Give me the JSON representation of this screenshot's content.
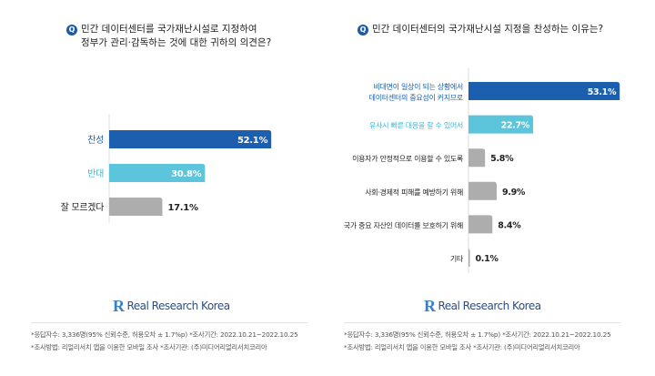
{
  "colors": {
    "primary": "#1b5fae",
    "secondary": "#5cc5dc",
    "neutral": "#adadad",
    "axis": "#dddddd"
  },
  "logo": {
    "text": "Real Research Korea"
  },
  "footnotes": [
    "*응답자수: 3,336명(95% 신뢰수준, 허용오차 ± 1.7%p)  *조사기간: 2022.10.21~2022.10.25",
    "*조사방법: 리얼리서치 앱을 이용한 모바일 조사  *조사기관: (주)미디어리얼리서치코리아"
  ],
  "chart_data": [
    {
      "type": "bar",
      "orientation": "horizontal",
      "title_icon": "Q",
      "title_lines": [
        "민간 데이터센터를 국가재난시설로 지정하여",
        "정부가 관리·감독하는 것에 대한 귀하의 의견은?"
      ],
      "categories": [
        "찬성",
        "반대",
        "잘 모르겠다"
      ],
      "values": [
        52.1,
        30.8,
        17.1
      ],
      "value_labels": [
        "52.1%",
        "30.8%",
        "17.1%"
      ],
      "unit": "%",
      "bar_colors": [
        "#1b5fae",
        "#5cc5dc",
        "#adadad"
      ],
      "label_colors": [
        "#1b5fae",
        "#3fb3cf",
        "#222222"
      ],
      "grid": false
    },
    {
      "type": "bar",
      "orientation": "horizontal",
      "title_icon": "Q",
      "title_lines": [
        "민간 데이터센터의 국가재난시설 지정을 찬성하는 이유는?"
      ],
      "categories": [
        [
          "비대면이 일상이 되는 상황에서",
          "데이터센터의 중요성이 커지므로"
        ],
        [
          "유사시 빠른 대응을 할 수 있어서"
        ],
        [
          "이용자가 안정적으로 이용할 수 있도록"
        ],
        [
          "사회·경제적 피해를 예방하기 위해"
        ],
        [
          "국가 중요 자산인 데이터를 보호하기 위해"
        ],
        [
          "기타"
        ]
      ],
      "values": [
        53.1,
        22.7,
        5.8,
        9.9,
        8.4,
        0.1
      ],
      "value_labels": [
        "53.1%",
        "22.7%",
        "5.8%",
        "9.9%",
        "8.4%",
        "0.1%"
      ],
      "unit": "%",
      "bar_colors": [
        "#1b5fae",
        "#5cc5dc",
        "#adadad",
        "#adadad",
        "#adadad",
        "#adadad"
      ],
      "label_colors": [
        "#1b5fae",
        "#3fb3cf",
        "#222222",
        "#222222",
        "#222222",
        "#222222"
      ],
      "grid": false
    }
  ]
}
